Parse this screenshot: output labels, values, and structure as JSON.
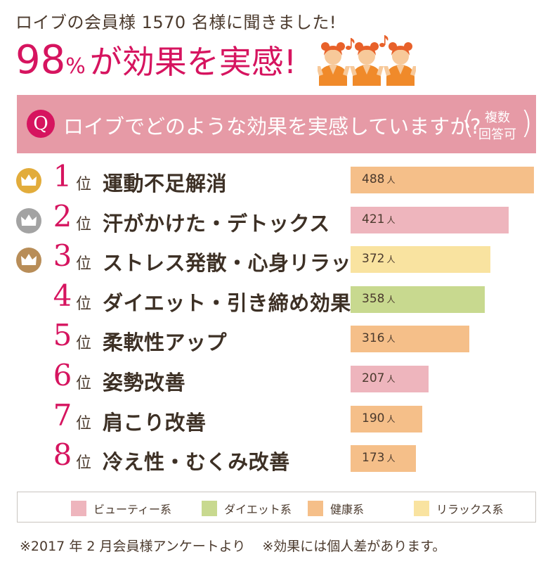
{
  "header": {
    "subtitle": "ロイブの会員様 1570 名様に聞きました!",
    "percent": "98",
    "percent_sign": "%",
    "headline_rest": "が効果を実感!"
  },
  "question": {
    "badge": "Q",
    "text": "ロイブでどのような効果を実感していますか?",
    "note_line1": "複数",
    "note_line2": "回答可"
  },
  "colors": {
    "accent": "#d6145f",
    "beauty": "#eeb5bd",
    "diet": "#c8d98f",
    "health": "#f5bf89",
    "relax": "#f9e3a0",
    "gold": "#e2ac3b",
    "silver": "#a3a3a3",
    "bronze": "#b88d58"
  },
  "chart_data": {
    "type": "bar",
    "orientation": "horizontal",
    "unit": "人",
    "rank_suffix": "位",
    "xlim": [
      0,
      488
    ],
    "items": [
      {
        "rank": "1",
        "label": "運動不足解消",
        "value": 488,
        "category": "health",
        "medal": "gold"
      },
      {
        "rank": "2",
        "label": "汗がかけた・デトックス",
        "value": 421,
        "category": "beauty",
        "medal": "silver"
      },
      {
        "rank": "3",
        "label": "ストレス発散・心身リラックス",
        "value": 372,
        "category": "relax",
        "medal": "bronze"
      },
      {
        "rank": "4",
        "label": "ダイエット・引き締め効果",
        "value": 358,
        "category": "diet",
        "medal": ""
      },
      {
        "rank": "5",
        "label": "柔軟性アップ",
        "value": 316,
        "category": "health",
        "medal": ""
      },
      {
        "rank": "6",
        "label": "姿勢改善",
        "value": 207,
        "category": "beauty",
        "medal": ""
      },
      {
        "rank": "7",
        "label": "肩こり改善",
        "value": 190,
        "category": "health",
        "medal": ""
      },
      {
        "rank": "8",
        "label": "冷え性・むくみ改善",
        "value": 173,
        "category": "health",
        "medal": ""
      }
    ],
    "legend": [
      {
        "key": "beauty",
        "label": "ビューティー系"
      },
      {
        "key": "diet",
        "label": "ダイエット系"
      },
      {
        "key": "health",
        "label": "健康系"
      },
      {
        "key": "relax",
        "label": "リラックス系"
      }
    ]
  },
  "footer": {
    "note1": "※2017 年 2 月会員様アンケートより",
    "note2": "※効果には個人差があります。"
  }
}
